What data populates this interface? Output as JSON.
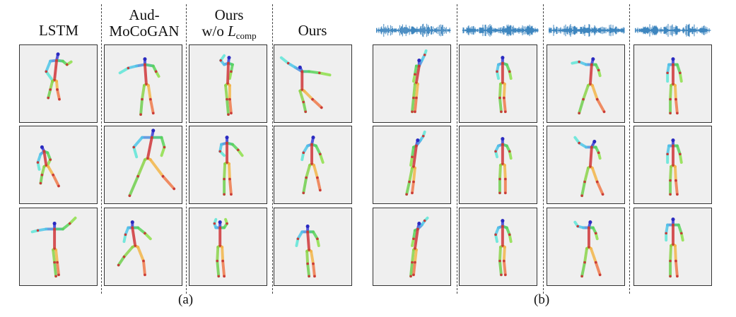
{
  "part_a": {
    "headers": {
      "lstm": "LSTM",
      "aud_line1": "Aud-",
      "aud_line2": "MoCoGAN",
      "ours_comp_line1": "Ours",
      "ours_comp_prefix": "w/o ",
      "ours_comp_symbol": "L",
      "ours_comp_sub": "comp",
      "ours": "Ours"
    },
    "caption": "(a)"
  },
  "part_b": {
    "caption": "(b)",
    "waveform_color": "#2a79b8"
  },
  "colors": {
    "panel_bg": "#efefef",
    "panel_border": "#333333",
    "joint": "#c83a3a"
  }
}
